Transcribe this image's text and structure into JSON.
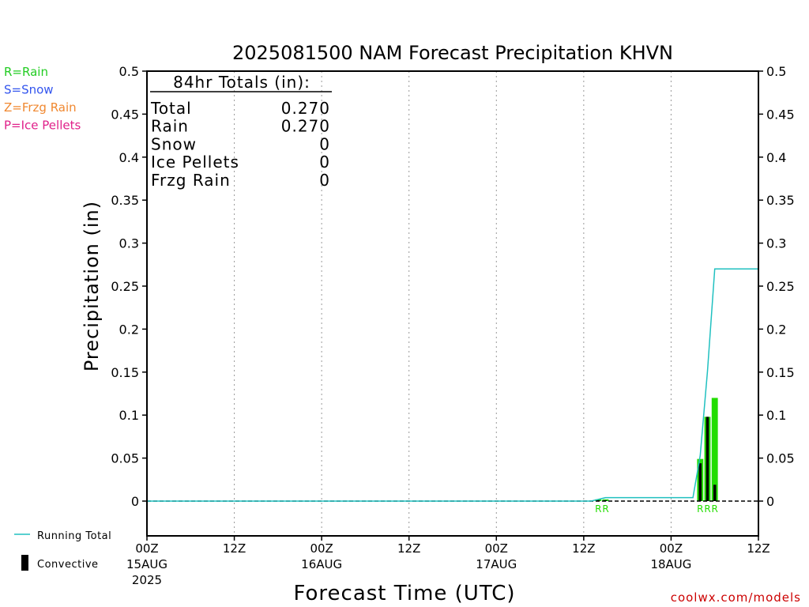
{
  "chart_data": {
    "type": "bar",
    "title": "2025081500 NAM Forecast Precipitation KHVN",
    "xlabel": "Forecast Time (UTC)",
    "ylabel": "Precipitation (in)",
    "ylim": [
      -0.04,
      0.5
    ],
    "xlim_hours": [
      0,
      84
    ],
    "y_ticks": [
      "0",
      "0.05",
      "0.1",
      "0.15",
      "0.2",
      "0.25",
      "0.3",
      "0.35",
      "0.4",
      "0.45",
      "0.5"
    ],
    "x_ticks": [
      {
        "hour": 0,
        "label": "00Z",
        "sub": "15AUG",
        "sub2": "2025"
      },
      {
        "hour": 12,
        "label": "12Z",
        "sub": "",
        "sub2": ""
      },
      {
        "hour": 24,
        "label": "00Z",
        "sub": "16AUG",
        "sub2": ""
      },
      {
        "hour": 36,
        "label": "12Z",
        "sub": "",
        "sub2": ""
      },
      {
        "hour": 48,
        "label": "00Z",
        "sub": "17AUG",
        "sub2": ""
      },
      {
        "hour": 60,
        "label": "12Z",
        "sub": "",
        "sub2": ""
      },
      {
        "hour": 72,
        "label": "00Z",
        "sub": "18AUG",
        "sub2": ""
      },
      {
        "hour": 84,
        "label": "12Z",
        "sub": "",
        "sub2": ""
      }
    ],
    "grid": "vertical dotted",
    "totals_box": {
      "header": "84hr Totals (in):",
      "rows": [
        {
          "label": "Total",
          "value": "0.270"
        },
        {
          "label": "Rain",
          "value": "0.270"
        },
        {
          "label": "Snow",
          "value": "0"
        },
        {
          "label": "Ice Pellets",
          "value": "0"
        },
        {
          "label": "Frzg Rain",
          "value": "0"
        }
      ]
    },
    "type_legend": [
      {
        "text": "R=Rain",
        "color": "#22cc22"
      },
      {
        "text": "S=Snow",
        "color": "#3355ee"
      },
      {
        "text": "Z=Frzg Rain",
        "color": "#f08830"
      },
      {
        "text": "P=Ice Pellets",
        "color": "#e0208a"
      }
    ],
    "bottom_legend": [
      {
        "text": "Running Total",
        "symbol": "line",
        "color": "#20c0c0"
      },
      {
        "text": "Convective",
        "symbol": "bar",
        "color": "#000000"
      }
    ],
    "precip_bars": [
      {
        "hour": 62,
        "total": 0.002,
        "convective": 0.001
      },
      {
        "hour": 63,
        "total": 0.002,
        "convective": 0.001
      },
      {
        "hour": 76,
        "total": 0.049,
        "convective": 0.044
      },
      {
        "hour": 77,
        "total": 0.098,
        "convective": 0.098
      },
      {
        "hour": 78,
        "total": 0.12,
        "convective": 0.019
      }
    ],
    "type_markers": [
      {
        "hour": 62,
        "text": "R"
      },
      {
        "hour": 63,
        "text": "R"
      },
      {
        "hour": 76,
        "text": "R"
      },
      {
        "hour": 77,
        "text": "R"
      },
      {
        "hour": 78,
        "text": "R"
      }
    ],
    "running_total": {
      "x": [
        0,
        61,
        62,
        63,
        75,
        76,
        77,
        78,
        84
      ],
      "y": [
        0,
        0,
        0.002,
        0.004,
        0.004,
        0.053,
        0.151,
        0.27,
        0.27
      ]
    },
    "colors": {
      "rain": "#22dd00",
      "convective": "#000000",
      "running_total": "#20c0c0",
      "watermark": "#cc0000"
    },
    "watermark": "coolwx.com/models"
  }
}
